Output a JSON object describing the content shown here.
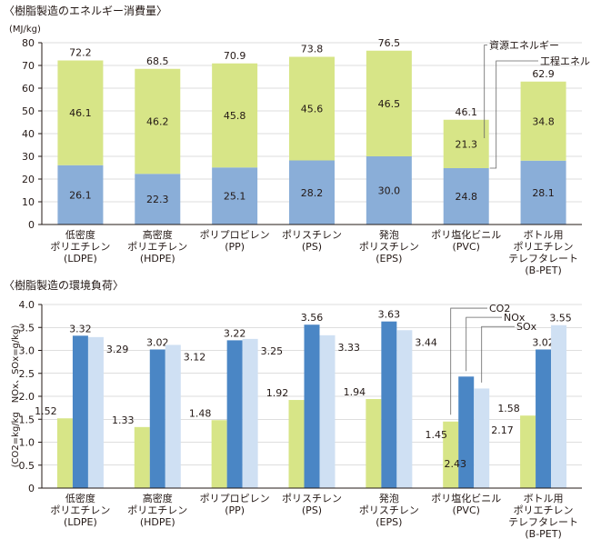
{
  "colors": {
    "green": "#D7E587",
    "blue_mid": "#8AAED8",
    "blue_dark": "#4A86C5",
    "blue_light": "#CFE0F3",
    "axis": "#231815",
    "grid": "#bdbdbd"
  },
  "chart_data": [
    {
      "type": "bar",
      "stacked": true,
      "title": "〈樹脂製造のエネルギー消費量〉",
      "unit": "(MJ/kg)",
      "ylim": [
        0,
        80
      ],
      "yticks": [
        0,
        10,
        20,
        30,
        40,
        50,
        60,
        70,
        80
      ],
      "categories": [
        [
          "低密度",
          "ポリエチレン",
          "(LDPE)"
        ],
        [
          "高密度",
          "ポリエチレン",
          "(HDPE)"
        ],
        [
          "ポリプロピレン",
          "(PP)"
        ],
        [
          "ポリスチレン",
          "(PS)"
        ],
        [
          "発泡",
          "ポリスチレン",
          "(EPS)"
        ],
        [
          "ポリ塩化ビニル",
          "(PVC)"
        ],
        [
          "ボトル用",
          "ポリエチレン",
          "テレフタレート",
          "(B-PET)"
        ]
      ],
      "series": [
        {
          "name": "工程エネルギー",
          "values": [
            26.1,
            22.3,
            25.1,
            28.2,
            30.0,
            24.8,
            28.1
          ],
          "labels": [
            "26.1",
            "22.3",
            "25.1",
            "28.2",
            "30.0",
            "24.8",
            "28.1"
          ]
        },
        {
          "name": "資源エネルギー",
          "values": [
            46.1,
            46.2,
            45.8,
            45.6,
            46.5,
            21.3,
            34.8
          ],
          "labels": [
            "46.1",
            "46.2",
            "45.8",
            "45.6",
            "46.5",
            "21.3",
            "34.8"
          ]
        }
      ],
      "totals": [
        72.2,
        68.5,
        70.9,
        73.8,
        76.5,
        46.1,
        62.9
      ],
      "total_labels": [
        "72.2",
        "68.5",
        "70.9",
        "73.8",
        "76.5",
        "46.1",
        "62.9"
      ],
      "legend": [
        "資源エネルギー",
        "工程エネルギー"
      ]
    },
    {
      "type": "bar",
      "title": "〈樹脂製造の環境負荷〉",
      "ylabel": "(CO2=kg/kg　NOx、SOx=g/kg)",
      "ylim": [
        0,
        4.0
      ],
      "yticks": [
        "0",
        "0.5",
        "1.0",
        "1.5",
        "2.0",
        "2.5",
        "3.0",
        "3.5",
        "4.0"
      ],
      "categories": [
        [
          "低密度",
          "ポリエチレン",
          "(LDPE)"
        ],
        [
          "高密度",
          "ポリエチレン",
          "(HDPE)"
        ],
        [
          "ポリプロピレン",
          "(PP)"
        ],
        [
          "ポリスチレン",
          "(PS)"
        ],
        [
          "発泡",
          "ポリスチレン",
          "(EPS)"
        ],
        [
          "ポリ塩化ビニル",
          "(PVC)"
        ],
        [
          "ボトル用",
          "ポリエチレン",
          "テレフタレート",
          "(B-PET)"
        ]
      ],
      "series": [
        {
          "name": "CO2",
          "values": [
            1.52,
            1.33,
            1.48,
            1.92,
            1.94,
            1.45,
            1.58
          ],
          "labels": [
            "1.52",
            "1.33",
            "1.48",
            "1.92",
            "1.94",
            "1.45",
            "1.58"
          ]
        },
        {
          "name": "NOx",
          "values": [
            3.32,
            3.02,
            3.22,
            3.56,
            3.63,
            2.43,
            3.02
          ],
          "labels": [
            "3.32",
            "3.02",
            "3.22",
            "3.56",
            "3.63",
            "2.43",
            "3.02"
          ]
        },
        {
          "name": "SOx",
          "values": [
            3.29,
            3.12,
            3.25,
            3.33,
            3.44,
            2.17,
            3.55
          ],
          "labels": [
            "3.29",
            "3.12",
            "3.25",
            "3.33",
            "3.44",
            "2.17",
            "3.55"
          ]
        }
      ],
      "legend": [
        "CO2",
        "NOx",
        "SOx"
      ]
    }
  ]
}
